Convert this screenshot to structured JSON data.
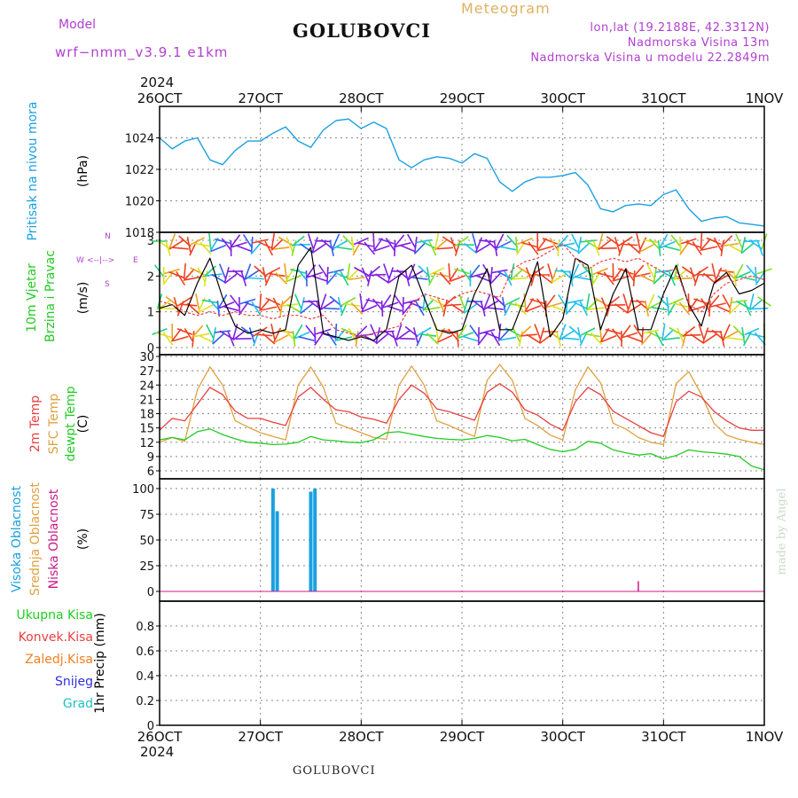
{
  "header": {
    "model_label": "Model",
    "model_name": "wrf−nmm_v3.9.1  e1km",
    "station": "GOLUBOVCI",
    "meteogram": "Meteogram",
    "lonlat": "lon,lat (19.2188E, 42.3312N)",
    "elevation": "Nadmorska Visina 13m",
    "model_elevation": "Nadmorska Visina u modelu 22.2849m",
    "footer_station": "GOLUBOVCI",
    "credit": "made by Angel",
    "year": "2024"
  },
  "time_axis": {
    "labels": [
      "26OCT",
      "27OCT",
      "28OCT",
      "29OCT",
      "30OCT",
      "31OCT",
      "1NOV"
    ]
  },
  "panels": {
    "pressure": {
      "label": "Pritisak na nivou mora",
      "unit": "(hPa)"
    },
    "wind": {
      "label1": "10m Vjetar",
      "label2": "Brzina i Pravac",
      "unit": "(m/s)",
      "compass_n": "N",
      "compass_w": "W",
      "compass_e": "E",
      "compass_s": "S"
    },
    "temp": {
      "label1": "2m Temp",
      "label2": "SFC Temp",
      "label3": "dewpt Temp",
      "unit": "(C)"
    },
    "cloud": {
      "label1": "Visoka Oblacnost",
      "label2": "Srednja Oblacnost",
      "label3": "Niska Oblacnost",
      "unit": "(%)"
    },
    "precip": {
      "unit": "1hr Precip (mm)",
      "legend": [
        "Ukupna Kisa",
        "Konvek.Kisa",
        "Zaledj.Kisa",
        "Snijeg",
        "Grad"
      ]
    }
  },
  "colors": {
    "pressure": "#1aa0e0",
    "temp2m": "#e84040",
    "sfctemp": "#e0a040",
    "dewpt": "#22cc22",
    "cloud_high": "#1aa0e0",
    "cloud_mid": "#e0a040",
    "cloud_low": "#cc1a88",
    "wind_speed": "#000000",
    "wind_gust": "#e84040",
    "label_green": "#22cc22",
    "label_red": "#e84040",
    "label_orange": "#f08020",
    "label_blue": "#3030e0",
    "label_cyan": "#20c0c0",
    "label_purple": "#b040d0",
    "label_gold": "#e0b060"
  },
  "chart_data": [
    {
      "type": "line",
      "name": "pressure",
      "ylabel": "(hPa)",
      "ylim": [
        1018,
        1026
      ],
      "yticks": [
        1018,
        1020,
        1022,
        1024
      ],
      "x": [
        0,
        3,
        6,
        9,
        12,
        15,
        18,
        21,
        24,
        27,
        30,
        33,
        36,
        39,
        42,
        45,
        48,
        51,
        54,
        57,
        60,
        63,
        66,
        69,
        72,
        75,
        78,
        81,
        84,
        87,
        90,
        93,
        96,
        99,
        102,
        105,
        108,
        111,
        114,
        117,
        120,
        123,
        126,
        129,
        132,
        135,
        138,
        141,
        144
      ],
      "series": [
        {
          "values": [
            1024.0,
            1023.3,
            1023.8,
            1024.0,
            1022.6,
            1022.3,
            1023.2,
            1023.8,
            1023.8,
            1024.3,
            1024.7,
            1023.8,
            1023.4,
            1024.5,
            1025.1,
            1025.2,
            1024.6,
            1025.0,
            1024.6,
            1022.6,
            1022.1,
            1022.6,
            1022.8,
            1022.7,
            1022.4,
            1023.0,
            1022.7,
            1021.2,
            1020.6,
            1021.2,
            1021.5,
            1021.5,
            1021.6,
            1021.8,
            1021.0,
            1019.5,
            1019.3,
            1019.7,
            1019.8,
            1019.7,
            1020.4,
            1020.7,
            1019.5,
            1018.7,
            1018.9,
            1019.0,
            1018.6,
            1018.5,
            1018.4
          ]
        }
      ]
    },
    {
      "type": "line",
      "name": "wind",
      "ylabel": "(m/s)",
      "ylim": [
        0,
        3.2
      ],
      "yticks": [
        0,
        1,
        2,
        3
      ],
      "x": [
        0,
        3,
        6,
        9,
        12,
        15,
        18,
        21,
        24,
        27,
        30,
        33,
        36,
        39,
        42,
        45,
        48,
        51,
        54,
        57,
        60,
        63,
        66,
        69,
        72,
        75,
        78,
        81,
        84,
        87,
        90,
        93,
        96,
        99,
        102,
        105,
        108,
        111,
        114,
        117,
        120,
        123,
        126,
        129,
        132,
        135,
        138,
        141,
        144
      ],
      "series": [
        {
          "values": [
            1.1,
            1.2,
            0.9,
            1.8,
            2.5,
            1.4,
            0.6,
            0.4,
            0.5,
            0.4,
            0.5,
            2.3,
            2.8,
            0.4,
            0.3,
            0.2,
            0.3,
            0.2,
            0.5,
            2.0,
            2.3,
            1.4,
            0.5,
            0.4,
            0.5,
            1.5,
            2.2,
            0.5,
            0.5,
            1.4,
            2.4,
            0.3,
            0.8,
            2.5,
            2.3,
            0.5,
            1.5,
            2.2,
            0.5,
            0.5,
            1.5,
            2.3,
            1.2,
            0.6,
            1.8,
            2.1,
            1.5,
            1.6,
            1.8
          ]
        },
        {
          "values": [
            1.3,
            1.2,
            1.0,
            0.9,
            1.0,
            0.9,
            1.0,
            0.9,
            0.9,
            0.8,
            0.9,
            0.9,
            0.8,
            0.9,
            0.5,
            0.4,
            0.3,
            0.4,
            0.5,
            0.6,
            1.2,
            1.5,
            1.4,
            1.3,
            1.5,
            1.6,
            1.5,
            1.4,
            2.2,
            2.4,
            2.5,
            2.7,
            2.9,
            2.5,
            2.2,
            2.4,
            2.5,
            2.4,
            2.5,
            2.3,
            2.1,
            2.2,
            1.2,
            1.0,
            1.5,
            1.8,
            1.9,
            2.0,
            1.9
          ]
        }
      ]
    },
    {
      "type": "line",
      "name": "temperature",
      "ylabel": "(C)",
      "ylim": [
        6,
        30
      ],
      "yticks": [
        6,
        9,
        12,
        15,
        18,
        21,
        24,
        27,
        30
      ],
      "x": [
        0,
        3,
        6,
        9,
        12,
        15,
        18,
        21,
        24,
        27,
        30,
        33,
        36,
        39,
        42,
        45,
        48,
        51,
        54,
        57,
        60,
        63,
        66,
        69,
        72,
        75,
        78,
        81,
        84,
        87,
        90,
        93,
        96,
        99,
        102,
        105,
        108,
        111,
        114,
        117,
        120,
        123,
        126,
        129,
        132,
        135,
        138,
        141,
        144
      ],
      "series": [
        {
          "name": "2m Temp",
          "values": [
            14.5,
            17,
            16.5,
            20,
            23.5,
            22,
            18.5,
            17,
            17,
            16.2,
            15.5,
            21.5,
            23.5,
            21,
            18.8,
            18.4,
            17.3,
            16.8,
            16,
            21,
            24,
            22.3,
            19,
            18.4,
            17.5,
            16.6,
            22.5,
            24.3,
            22.5,
            18.8,
            17.7,
            15.8,
            14.5,
            20.5,
            23.5,
            22.0,
            18.5,
            17,
            15.5,
            14,
            13.2,
            20.5,
            22.7,
            21.5,
            18.5,
            16.5,
            15,
            14.5,
            14.5
          ]
        },
        {
          "name": "SFC Temp",
          "values": [
            12,
            13,
            12.2,
            23,
            27.8,
            24,
            16.5,
            15.2,
            14,
            13.2,
            12.5,
            24,
            27.8,
            23.5,
            16,
            15,
            14.0,
            13,
            12.6,
            24,
            28,
            24,
            16.5,
            15.5,
            14.3,
            13.2,
            25,
            28.3,
            25,
            17,
            15.5,
            13.5,
            12.5,
            23,
            27.8,
            24.5,
            16,
            14.8,
            13.0,
            12,
            11.5,
            24.3,
            26.8,
            22,
            16,
            13.5,
            12.6,
            12,
            11.5
          ]
        },
        {
          "name": "dewpt Temp",
          "values": [
            12.5,
            13,
            12.5,
            14.2,
            14.8,
            13.6,
            12.7,
            12.0,
            11.8,
            11.5,
            11.6,
            12.0,
            13.2,
            12.5,
            12.3,
            12.0,
            11.9,
            12.5,
            14.0,
            14.2,
            13.7,
            13.2,
            12.8,
            12.6,
            12.5,
            12.8,
            13.4,
            13.0,
            12.3,
            12.6,
            11.5,
            10.5,
            10.0,
            10.5,
            12.2,
            11.8,
            10.4,
            9.8,
            9.3,
            9.6,
            8.5,
            9.2,
            10.4,
            10.0,
            9.8,
            9.5,
            9.0,
            7.0,
            6.2
          ]
        }
      ]
    },
    {
      "type": "bar",
      "name": "cloud",
      "ylabel": "(%)",
      "ylim": [
        0,
        100
      ],
      "yticks": [
        0,
        25,
        50,
        75,
        100
      ],
      "series": [
        {
          "name": "Visoka Oblacnost",
          "x": [
            27,
            28,
            36,
            37
          ],
          "values": [
            100,
            78,
            97,
            100
          ]
        },
        {
          "name": "Niska Oblacnost",
          "x": [
            114
          ],
          "values": [
            10
          ]
        }
      ]
    },
    {
      "type": "bar",
      "name": "precip",
      "ylabel": "1hr Precip (mm)",
      "ylim": [
        0,
        1
      ],
      "yticks": [
        0,
        0.2,
        0.4,
        0.6,
        0.8
      ],
      "series": []
    }
  ]
}
